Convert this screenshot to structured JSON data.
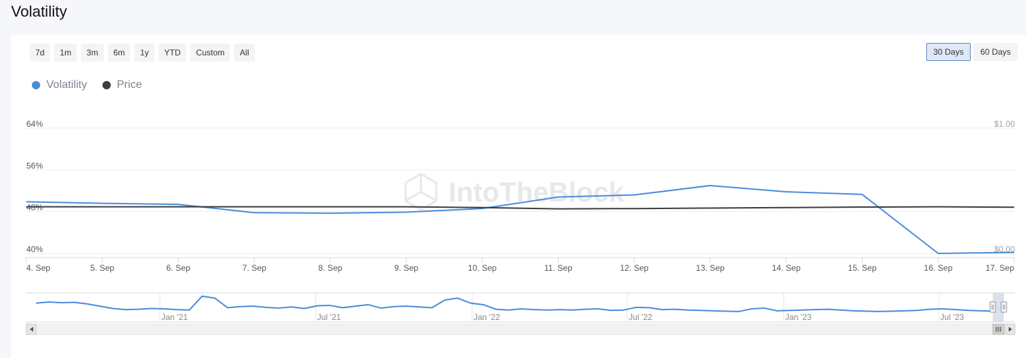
{
  "page": {
    "title": "Volatility"
  },
  "range_buttons": [
    "7d",
    "1m",
    "3m",
    "6m",
    "1y",
    "YTD",
    "Custom",
    "All"
  ],
  "period_buttons": [
    {
      "label": "30 Days",
      "active": true
    },
    {
      "label": "60 Days",
      "active": false
    }
  ],
  "watermark": "IntoTheBlock",
  "colors": {
    "volatility": "#4a8bdb",
    "price": "#3a3d42",
    "navigator_mask": "#c9d4e6"
  },
  "chart_data": {
    "type": "line",
    "categories": [
      "4. Sep",
      "5. Sep",
      "6. Sep",
      "7. Sep",
      "8. Sep",
      "9. Sep",
      "10. Sep",
      "11. Sep",
      "12. Sep",
      "13. Sep",
      "14. Sep",
      "15. Sep",
      "16. Sep",
      "17. Sep"
    ],
    "series": [
      {
        "name": "Volatility",
        "axis": "left",
        "values": [
          49.9,
          49.6,
          49.4,
          47.8,
          47.7,
          47.9,
          48.6,
          50.8,
          51.2,
          53.0,
          51.8,
          51.3,
          40.0,
          40.2
        ]
      },
      {
        "name": "Price",
        "axis": "right",
        "values": [
          0.372,
          0.372,
          0.372,
          0.372,
          0.372,
          0.372,
          0.366,
          0.356,
          0.358,
          0.362,
          0.366,
          0.37,
          0.372,
          0.369
        ]
      }
    ],
    "y_left": {
      "ticks": [
        "64%",
        "56%",
        "48%",
        "40%"
      ],
      "range": [
        40,
        64
      ]
    },
    "y_right": {
      "ticks": [
        "$1.00",
        "$0.00"
      ],
      "range": [
        0,
        1
      ]
    },
    "legend": "top-left",
    "grid": true,
    "navigator": {
      "labels": [
        "Jan '21",
        "Jul '21",
        "Jan '22",
        "Jul '22",
        "Jan '23",
        "Jul '23"
      ],
      "values": [
        42,
        45,
        43,
        44,
        40,
        34,
        28,
        25,
        26,
        28,
        27,
        25,
        24,
        60,
        55,
        30,
        33,
        34,
        31,
        29,
        32,
        28,
        35,
        36,
        30,
        34,
        38,
        29,
        33,
        34,
        32,
        30,
        50,
        55,
        42,
        38,
        26,
        24,
        27,
        25,
        24,
        25,
        24,
        26,
        27,
        23,
        24,
        31,
        30,
        25,
        26,
        24,
        23,
        22,
        21,
        20,
        27,
        29,
        22,
        23,
        24,
        25,
        26,
        24,
        22,
        21,
        20,
        21,
        22,
        23,
        26,
        27,
        25,
        23,
        22,
        21
      ]
    }
  }
}
